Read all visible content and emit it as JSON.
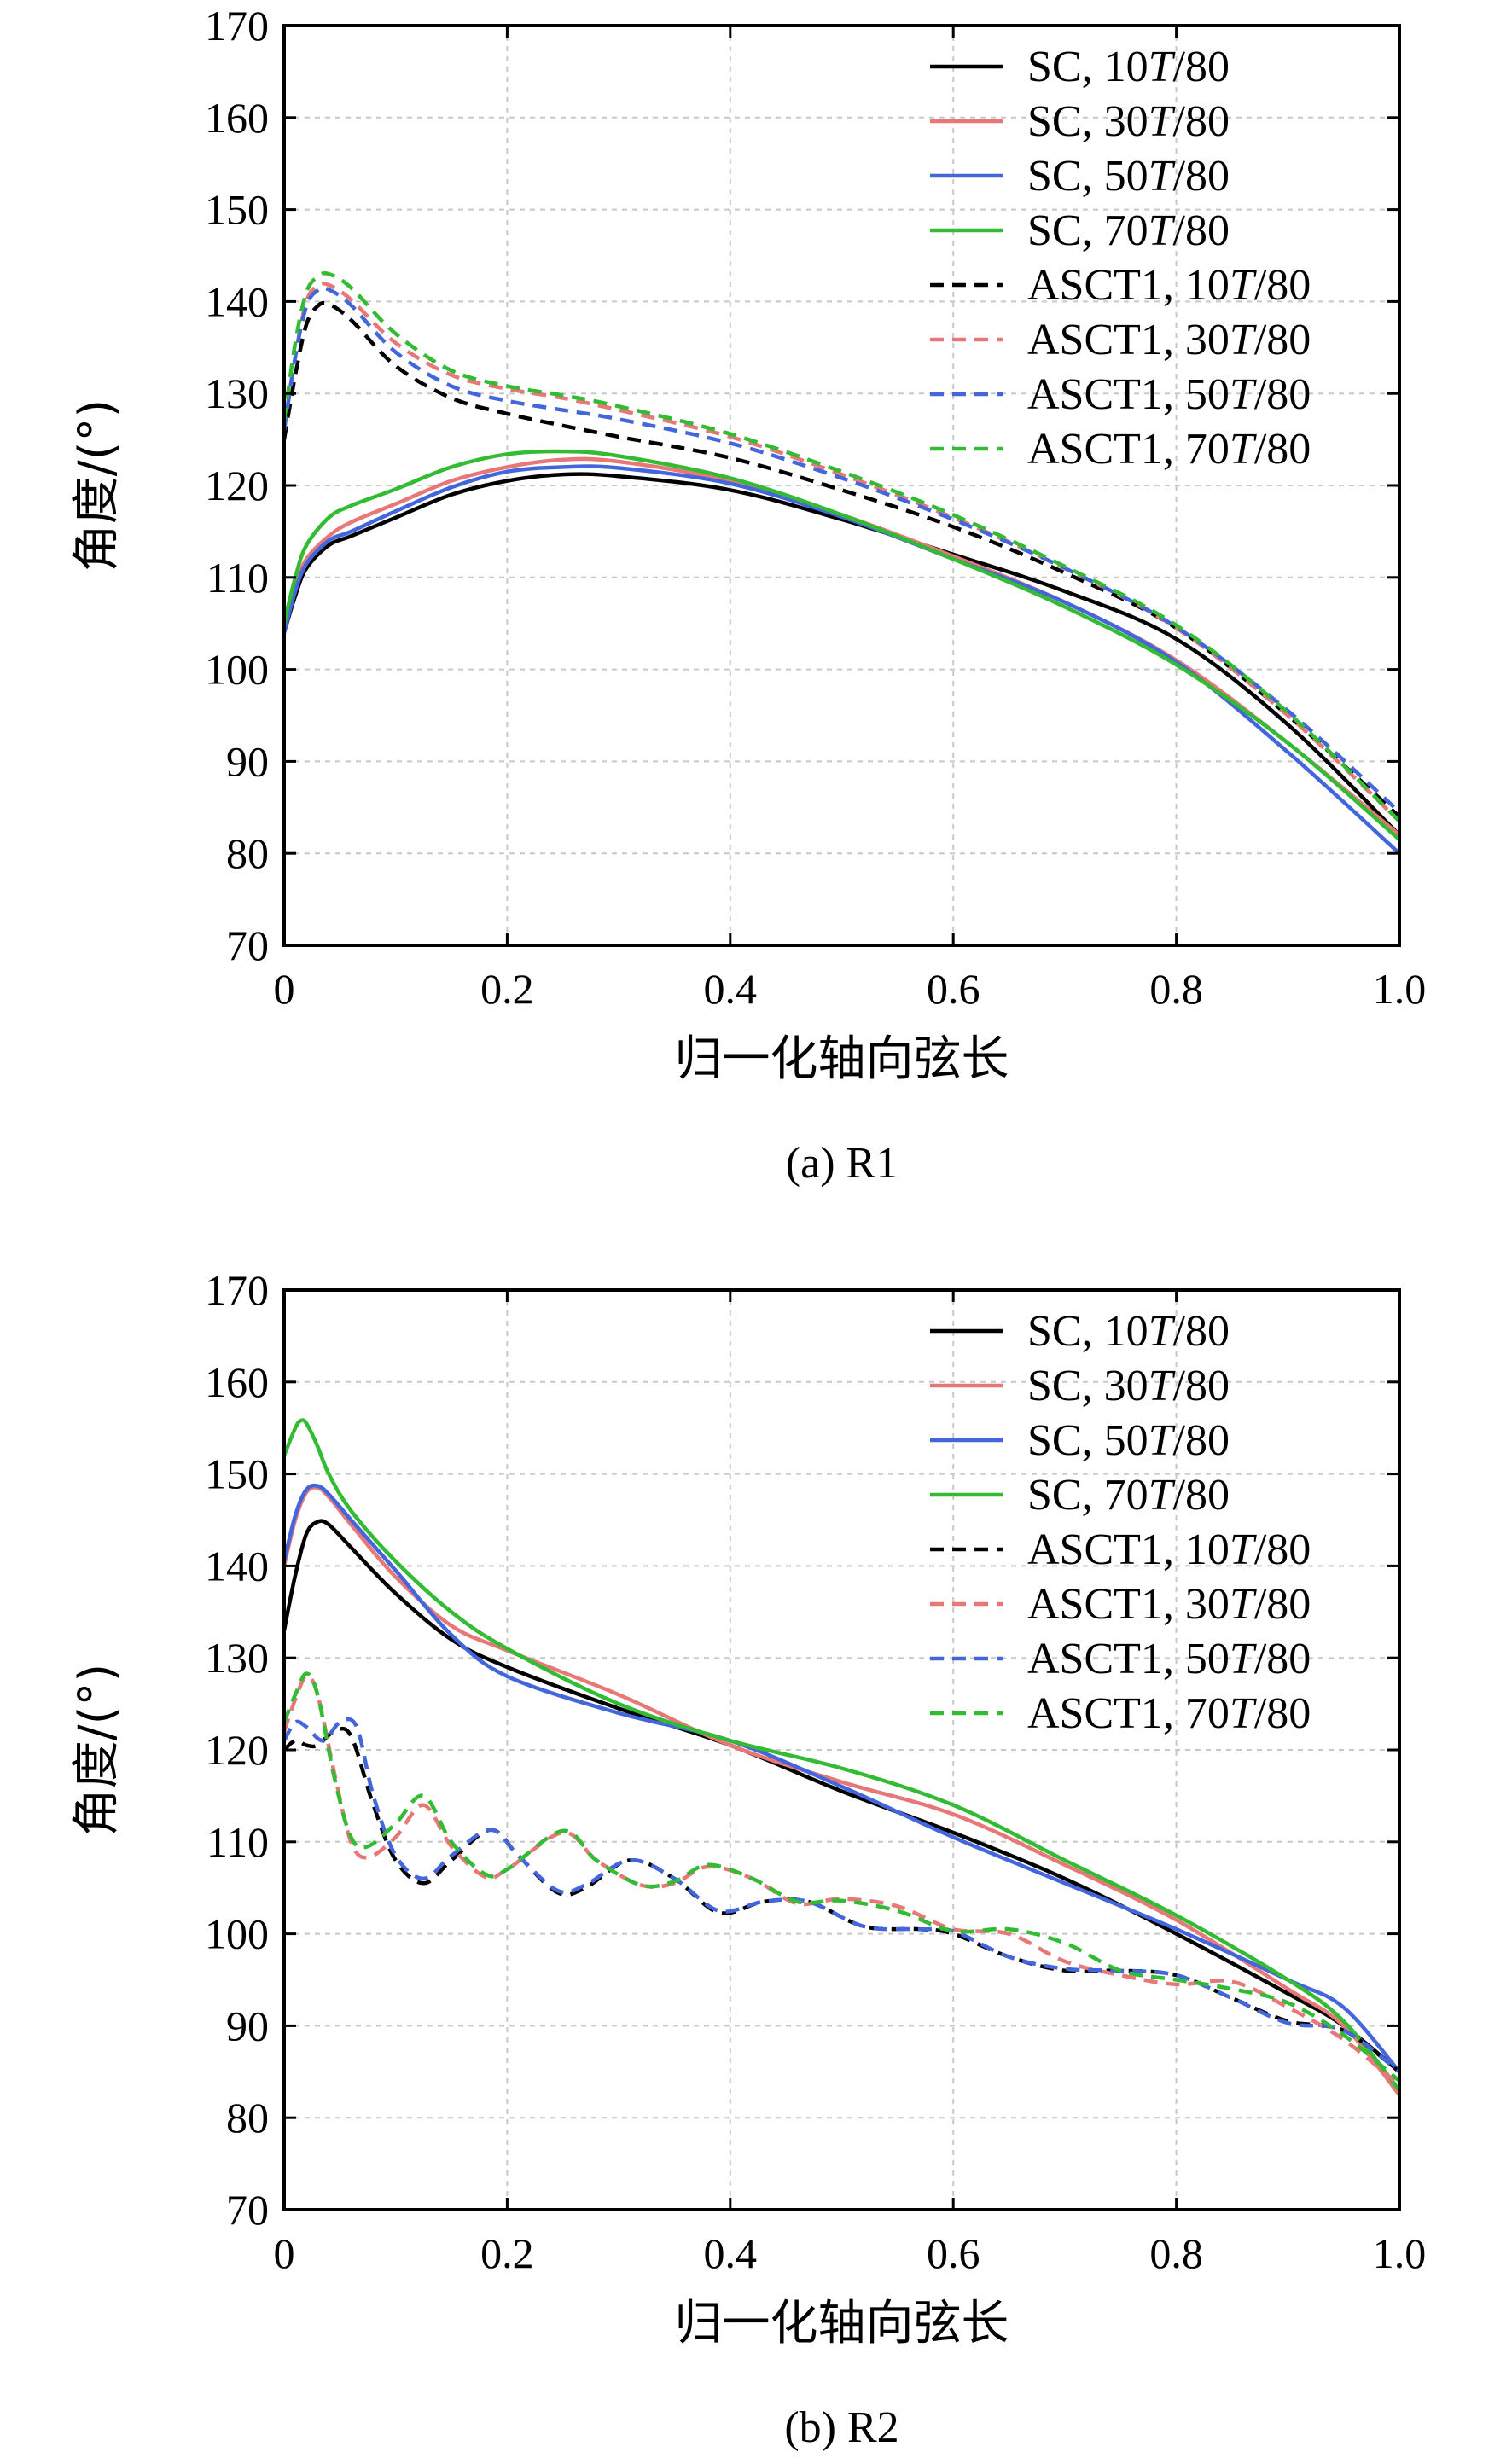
{
  "chart_data": [
    {
      "type": "line",
      "caption": "(a) R1",
      "xlabel": "归一化轴向弦长",
      "ylabel": "角度/(°)",
      "xlim": [
        0,
        1.0
      ],
      "ylim": [
        70,
        170
      ],
      "xticks": [
        "0",
        "0.2",
        "0.4",
        "0.6",
        "0.8",
        "1.0"
      ],
      "yticks": [
        "70",
        "80",
        "90",
        "100",
        "110",
        "120",
        "130",
        "140",
        "150",
        "160",
        "170"
      ],
      "grid": true,
      "legend_position": "top-right",
      "series": [
        {
          "name": "SC, 10T/80",
          "color": "#000000",
          "dash": "solid",
          "x": [
            0,
            0.01,
            0.02,
            0.04,
            0.06,
            0.1,
            0.15,
            0.2,
            0.25,
            0.3,
            0.4,
            0.5,
            0.6,
            0.7,
            0.8,
            0.9,
            1.0
          ],
          "y": [
            104,
            108,
            111,
            113.5,
            114.5,
            116.5,
            119,
            120.5,
            121.2,
            121,
            119.5,
            116.3,
            112.5,
            108.5,
            103.3,
            94,
            82
          ]
        },
        {
          "name": "SC, 30T/80",
          "color": "#e87878",
          "dash": "solid",
          "x": [
            0,
            0.01,
            0.02,
            0.04,
            0.06,
            0.1,
            0.15,
            0.2,
            0.25,
            0.3,
            0.4,
            0.5,
            0.6,
            0.7,
            0.8,
            0.9,
            1.0
          ],
          "y": [
            104.5,
            109,
            112,
            114.5,
            116,
            118,
            120.5,
            122,
            122.8,
            122.6,
            120.5,
            116.8,
            112.3,
            107.3,
            101,
            92,
            82
          ]
        },
        {
          "name": "SC, 50T/80",
          "color": "#4466dd",
          "dash": "solid",
          "x": [
            0,
            0.01,
            0.02,
            0.04,
            0.06,
            0.1,
            0.15,
            0.2,
            0.25,
            0.3,
            0.4,
            0.5,
            0.6,
            0.7,
            0.8,
            0.9,
            1.0
          ],
          "y": [
            104,
            108.5,
            111.5,
            114,
            115,
            117.2,
            119.8,
            121.5,
            122,
            121.9,
            120.2,
            116.6,
            112,
            107.3,
            100.8,
            91,
            80
          ]
        },
        {
          "name": "SC, 70T/80",
          "color": "#33bb33",
          "dash": "solid",
          "x": [
            0,
            0.01,
            0.02,
            0.04,
            0.06,
            0.1,
            0.15,
            0.2,
            0.25,
            0.3,
            0.4,
            0.5,
            0.6,
            0.7,
            0.8,
            0.9,
            1.0
          ],
          "y": [
            105,
            110,
            113.5,
            116.5,
            117.8,
            119.6,
            122,
            123.4,
            123.7,
            123.2,
            120.8,
            116.8,
            112,
            106.8,
            100.5,
            92,
            81.5
          ]
        },
        {
          "name": "ASCT1, 10T/80",
          "color": "#000000",
          "dash": "dashed",
          "x": [
            0,
            0.01,
            0.02,
            0.03,
            0.04,
            0.06,
            0.1,
            0.15,
            0.2,
            0.25,
            0.3,
            0.4,
            0.5,
            0.6,
            0.7,
            0.8,
            0.9,
            1.0
          ],
          "y": [
            125,
            132,
            137.5,
            139.5,
            139.7,
            138,
            133,
            129.5,
            127.8,
            126.5,
            125.3,
            123,
            119.5,
            115.5,
            110.5,
            104.5,
            95,
            84
          ]
        },
        {
          "name": "ASCT1, 30T/80",
          "color": "#e87878",
          "dash": "dashed",
          "x": [
            0,
            0.01,
            0.02,
            0.03,
            0.04,
            0.06,
            0.1,
            0.15,
            0.2,
            0.25,
            0.3,
            0.4,
            0.5,
            0.6,
            0.7,
            0.8,
            0.9,
            1.0
          ],
          "y": [
            126,
            134,
            140,
            141.7,
            141.8,
            140.2,
            135.5,
            132,
            130.5,
            129.5,
            128.2,
            125.3,
            121.2,
            116.5,
            111,
            104.5,
            95,
            83.5
          ]
        },
        {
          "name": "ASCT1, 50T/80",
          "color": "#4466dd",
          "dash": "dashed",
          "x": [
            0,
            0.01,
            0.02,
            0.03,
            0.04,
            0.06,
            0.1,
            0.15,
            0.2,
            0.25,
            0.3,
            0.4,
            0.5,
            0.6,
            0.7,
            0.8,
            0.9,
            1.0
          ],
          "y": [
            126,
            134,
            139.5,
            141.2,
            141.3,
            139.6,
            134.5,
            130.8,
            129.2,
            128.2,
            127.2,
            124.6,
            120.8,
            116.3,
            111,
            104.6,
            95.5,
            84.5
          ]
        },
        {
          "name": "ASCT1, 70T/80",
          "color": "#33bb33",
          "dash": "dashed",
          "x": [
            0,
            0.01,
            0.02,
            0.03,
            0.04,
            0.06,
            0.1,
            0.15,
            0.2,
            0.25,
            0.3,
            0.4,
            0.5,
            0.6,
            0.7,
            0.8,
            0.9,
            1.0
          ],
          "y": [
            127,
            135.5,
            141,
            142.7,
            143,
            141.5,
            136.5,
            132.5,
            130.8,
            129.8,
            128.6,
            125.6,
            121.5,
            116.8,
            111.2,
            104.8,
            95.3,
            83.5
          ]
        }
      ]
    },
    {
      "type": "line",
      "caption": "(b) R2",
      "xlabel": "归一化轴向弦长",
      "ylabel": "角度/(°)",
      "xlim": [
        0,
        1.0
      ],
      "ylim": [
        70,
        170
      ],
      "xticks": [
        "0",
        "0.2",
        "0.4",
        "0.6",
        "0.8",
        "1.0"
      ],
      "yticks": [
        "70",
        "80",
        "90",
        "100",
        "110",
        "120",
        "130",
        "140",
        "150",
        "160",
        "170"
      ],
      "grid": true,
      "legend_position": "top-right",
      "series": [
        {
          "name": "SC, 10T/80",
          "color": "#000000",
          "dash": "solid",
          "x": [
            0,
            0.01,
            0.02,
            0.03,
            0.04,
            0.06,
            0.1,
            0.15,
            0.2,
            0.3,
            0.4,
            0.5,
            0.6,
            0.7,
            0.8,
            0.9,
            0.95,
            1.0
          ],
          "y": [
            133,
            139,
            143.5,
            144.8,
            144.5,
            142,
            137,
            132,
            129,
            124.5,
            120.5,
            115.5,
            111,
            106,
            100,
            93.5,
            90,
            85
          ]
        },
        {
          "name": "SC, 30T/80",
          "color": "#e87878",
          "dash": "solid",
          "x": [
            0,
            0.01,
            0.02,
            0.03,
            0.04,
            0.06,
            0.1,
            0.15,
            0.2,
            0.3,
            0.4,
            0.5,
            0.6,
            0.7,
            0.8,
            0.9,
            0.95,
            1.0
          ],
          "y": [
            140,
            145,
            148,
            148.5,
            147.5,
            144.5,
            138.8,
            133.5,
            130.8,
            126,
            120.5,
            116.5,
            113,
            107.5,
            101.5,
            94,
            90,
            82.5
          ]
        },
        {
          "name": "SC, 50T/80",
          "color": "#4466dd",
          "dash": "solid",
          "x": [
            0,
            0.01,
            0.02,
            0.03,
            0.04,
            0.06,
            0.1,
            0.15,
            0.2,
            0.3,
            0.4,
            0.5,
            0.6,
            0.7,
            0.8,
            0.9,
            0.95,
            1.0
          ],
          "y": [
            140.5,
            145.5,
            148.3,
            148.7,
            147.8,
            145,
            139.5,
            132.5,
            128,
            124,
            121,
            116,
            110.5,
            105.5,
            100.5,
            95,
            92,
            85
          ]
        },
        {
          "name": "SC, 70T/80",
          "color": "#33bb33",
          "dash": "solid",
          "x": [
            0,
            0.01,
            0.015,
            0.02,
            0.03,
            0.04,
            0.06,
            0.1,
            0.15,
            0.2,
            0.3,
            0.4,
            0.5,
            0.6,
            0.7,
            0.8,
            0.9,
            0.95,
            1.0
          ],
          "y": [
            152,
            155,
            155.8,
            155.5,
            153,
            150,
            146,
            140.5,
            135,
            131,
            125,
            121,
            118,
            114,
            108,
            102,
            95,
            90.5,
            83
          ]
        },
        {
          "name": "ASCT1, 10T/80",
          "color": "#000000",
          "dash": "dashed",
          "x": [
            0,
            0.01,
            0.02,
            0.03,
            0.045,
            0.06,
            0.08,
            0.1,
            0.125,
            0.15,
            0.185,
            0.21,
            0.245,
            0.27,
            0.31,
            0.35,
            0.39,
            0.43,
            0.47,
            0.52,
            0.57,
            0.6,
            0.65,
            0.7,
            0.75,
            0.8,
            0.85,
            0.9,
            0.95,
            1.0
          ],
          "y": [
            120,
            121,
            120.5,
            120.5,
            122,
            121.5,
            114,
            108,
            105.5,
            108,
            111.3,
            108.5,
            104.5,
            105,
            108,
            106,
            102.3,
            103.5,
            103.5,
            100.8,
            100.5,
            100,
            97.5,
            96,
            96,
            95.5,
            93,
            90.5,
            89.5,
            85
          ]
        },
        {
          "name": "ASCT1, 30T/80",
          "color": "#e87878",
          "dash": "dashed",
          "x": [
            0,
            0.01,
            0.02,
            0.03,
            0.045,
            0.06,
            0.075,
            0.1,
            0.125,
            0.15,
            0.18,
            0.2,
            0.25,
            0.28,
            0.32,
            0.35,
            0.38,
            0.42,
            0.46,
            0.5,
            0.55,
            0.6,
            0.65,
            0.7,
            0.75,
            0.8,
            0.85,
            0.9,
            0.95,
            1.0
          ],
          "y": [
            122,
            125.5,
            128,
            126,
            117.5,
            110,
            108.3,
            110.5,
            114,
            109.5,
            106.2,
            107,
            111,
            108,
            105.3,
            105.5,
            107.3,
            106,
            103.3,
            103.8,
            103,
            100.5,
            100,
            97,
            95.5,
            94.5,
            94.8,
            92,
            88.5,
            83.5
          ]
        },
        {
          "name": "ASCT1, 50T/80",
          "color": "#4466dd",
          "dash": "dashed",
          "x": [
            0,
            0.01,
            0.02,
            0.035,
            0.05,
            0.065,
            0.08,
            0.1,
            0.125,
            0.15,
            0.185,
            0.21,
            0.245,
            0.27,
            0.31,
            0.35,
            0.39,
            0.43,
            0.47,
            0.52,
            0.57,
            0.6,
            0.65,
            0.7,
            0.75,
            0.8,
            0.85,
            0.9,
            0.95,
            1.0
          ],
          "y": [
            121,
            123,
            122.5,
            121,
            123,
            122.5,
            115,
            108.5,
            106,
            108.5,
            111.3,
            108.5,
            104.7,
            105.3,
            108,
            106,
            102.5,
            103.5,
            103.5,
            100.8,
            100.5,
            100.3,
            97.5,
            96.2,
            96,
            95.5,
            93,
            90.3,
            89.5,
            85
          ]
        },
        {
          "name": "ASCT1, 70T/80",
          "color": "#33bb33",
          "dash": "dashed",
          "x": [
            0,
            0.01,
            0.02,
            0.03,
            0.045,
            0.06,
            0.075,
            0.1,
            0.125,
            0.15,
            0.18,
            0.2,
            0.25,
            0.28,
            0.32,
            0.35,
            0.38,
            0.42,
            0.46,
            0.5,
            0.55,
            0.6,
            0.65,
            0.7,
            0.75,
            0.8,
            0.85,
            0.9,
            0.95,
            1.0
          ],
          "y": [
            123,
            126,
            128.3,
            126,
            117,
            110.5,
            109.5,
            112,
            115,
            110,
            106.5,
            107,
            111.2,
            108,
            105.3,
            105.7,
            107.5,
            106,
            103.5,
            103.6,
            102.5,
            100.3,
            100.5,
            99,
            96,
            95,
            94,
            92.5,
            89,
            84
          ]
        }
      ]
    }
  ]
}
